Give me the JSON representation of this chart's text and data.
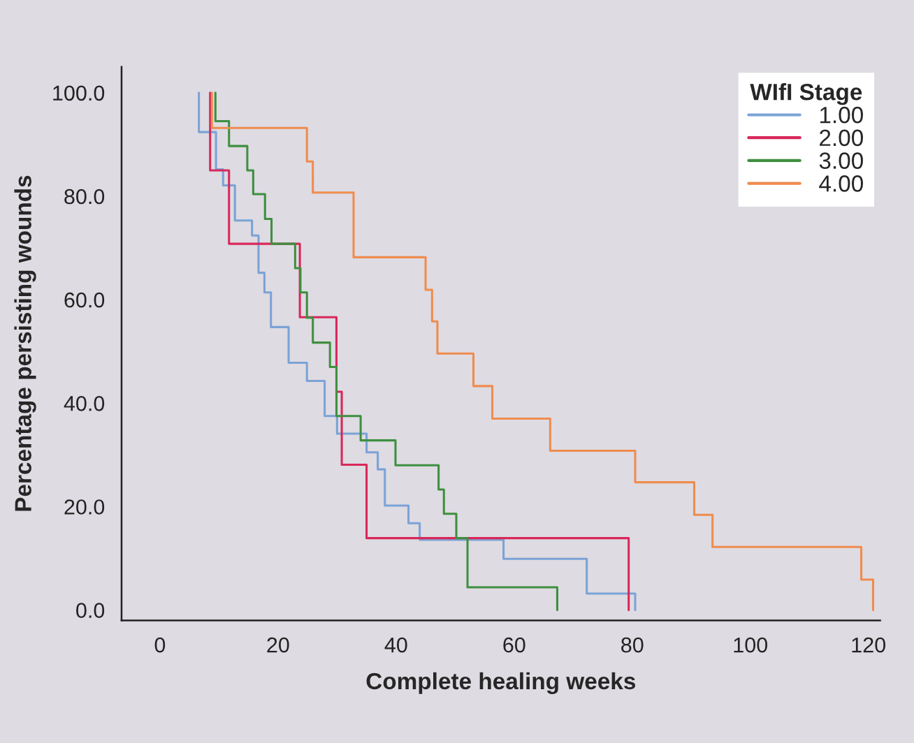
{
  "chart_data": {
    "type": "step",
    "xlabel": "Complete healing weeks",
    "ylabel": "Percentage persisting wounds",
    "legend_title": "WIfI Stage",
    "legend": "top right",
    "grid": false,
    "line_style": "solid",
    "marker": "none",
    "xlim": [
      -6.5,
      122
    ],
    "xticks": [
      0,
      20,
      40,
      60,
      80,
      100,
      120
    ],
    "ylim": [
      -2,
      105
    ],
    "yticks": [
      {
        "value": 0,
        "label": "0.0"
      },
      {
        "value": 20,
        "label": "20.0"
      },
      {
        "value": 40,
        "label": "40.0"
      },
      {
        "value": 60,
        "label": "60.0"
      },
      {
        "value": 80,
        "label": "80.0"
      },
      {
        "value": 100,
        "label": "100.0"
      }
    ],
    "series": [
      {
        "name": "1.00",
        "color": "#7ba3d6",
        "x": [
          6.6,
          6.6,
          9.5,
          10.7,
          12.7,
          15.6,
          16.7,
          17.7,
          18.8,
          21.8,
          24.9,
          27.9,
          30.0,
          35.0,
          36.9,
          38.1,
          42.1,
          44.0,
          58.2,
          72.3,
          80.5
        ],
        "values": [
          100,
          92.4,
          85.2,
          82.1,
          75.3,
          72.4,
          65.2,
          61.4,
          54.7,
          47.8,
          44.3,
          37.5,
          34.1,
          30.5,
          27.2,
          20.2,
          16.8,
          13.6,
          9.9,
          3.2,
          0
        ]
      },
      {
        "name": "2.00",
        "color": "#d8285a",
        "x": [
          8.5,
          8.5,
          11.7,
          23.7,
          29.9,
          30.8,
          35.0,
          79.4
        ],
        "values": [
          100,
          85.0,
          70.8,
          56.6,
          42.2,
          28.1,
          13.9,
          0
        ]
      },
      {
        "name": "3.00",
        "color": "#3f8f3f",
        "x": [
          9.4,
          9.4,
          11.7,
          14.8,
          15.8,
          17.8,
          18.9,
          22.9,
          23.8,
          24.9,
          25.9,
          28.8,
          29.9,
          34.0,
          39.9,
          47.2,
          48.1,
          50.2,
          52.1,
          67.3
        ],
        "values": [
          100,
          94.5,
          89.7,
          85.0,
          80.4,
          75.6,
          70.8,
          66.1,
          61.4,
          56.5,
          51.7,
          47.0,
          37.5,
          32.8,
          28.0,
          23.3,
          18.6,
          13.9,
          4.4,
          0
        ]
      },
      {
        "name": "4.00",
        "color": "#ef8c4e",
        "x": [
          8.8,
          8.8,
          24.9,
          25.9,
          32.8,
          45.0,
          46.1,
          47.0,
          53.1,
          56.3,
          66.1,
          80.5,
          90.5,
          93.6,
          118.8,
          120.8
        ],
        "values": [
          100,
          93.2,
          86.7,
          80.7,
          68.2,
          61.9,
          55.8,
          49.6,
          43.3,
          37.0,
          30.8,
          24.7,
          18.4,
          12.2,
          5.9,
          0
        ]
      }
    ]
  }
}
